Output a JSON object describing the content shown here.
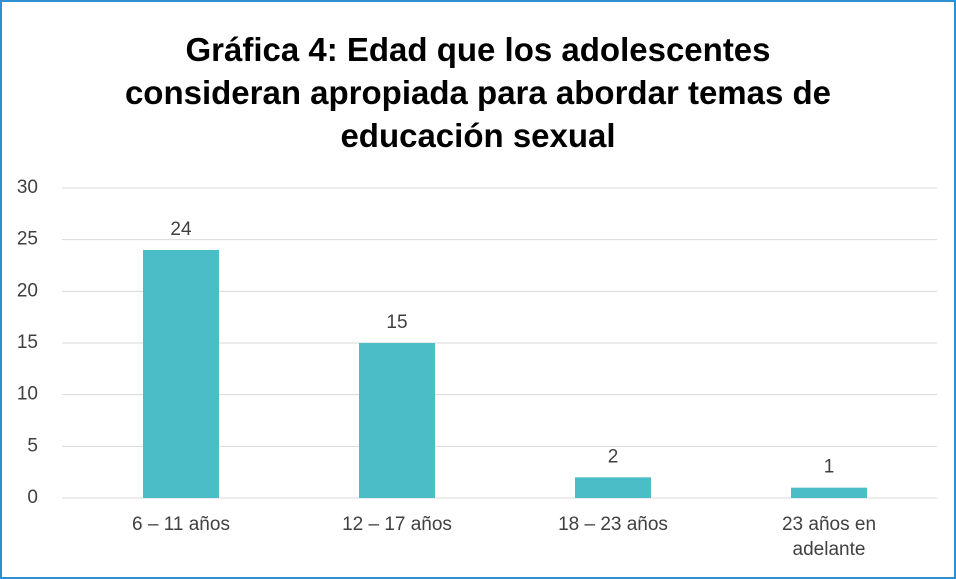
{
  "chart_data": {
    "type": "bar",
    "title": "Gráfica 4: Edad que los adolescentes consideran apropiada para abordar temas de educación sexual",
    "categories": [
      "6 – 11 años",
      "12 – 17 años",
      "18 – 23 años",
      "23 años en adelante"
    ],
    "values": [
      24,
      15,
      2,
      1
    ],
    "color": "#4bbdc6",
    "ylim": [
      0,
      30
    ],
    "yticks": [
      0,
      5,
      10,
      15,
      20,
      25,
      30
    ],
    "grid": true
  }
}
